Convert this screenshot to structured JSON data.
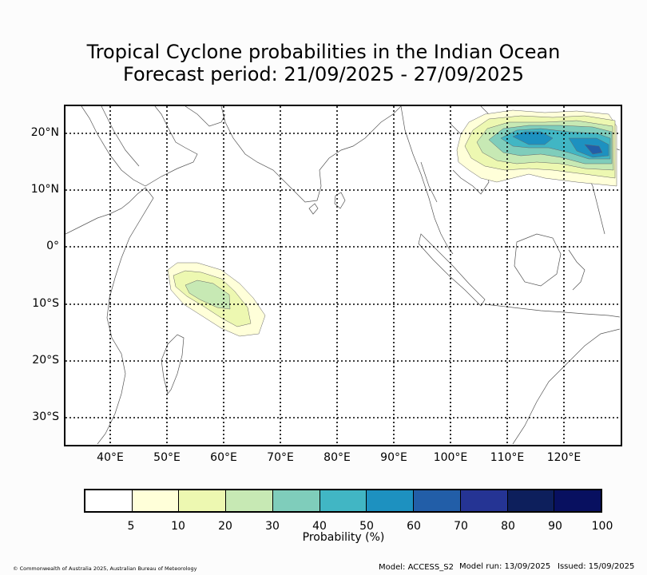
{
  "title": {
    "line1": "Tropical Cyclone probabilities in the Indian Ocean",
    "line2": "Forecast period: 21/09/2025 - 27/09/2025"
  },
  "map": {
    "lat_labels": [
      "20°N",
      "10°N",
      "0°",
      "10°S",
      "20°S",
      "30°S"
    ],
    "lon_labels": [
      "40°E",
      "50°E",
      "60°E",
      "70°E",
      "80°E",
      "90°E",
      "100°E",
      "110°E",
      "120°E"
    ],
    "lat_range": [
      -35,
      25
    ],
    "lon_range": [
      32,
      130
    ]
  },
  "colorbar": {
    "title": "Probability (%)",
    "ticks": [
      "5",
      "10",
      "20",
      "30",
      "40",
      "50",
      "60",
      "70",
      "80",
      "90",
      "100"
    ],
    "colors": [
      "#ffffff",
      "#ffffd9",
      "#edf8b1",
      "#c7e9b4",
      "#7fcdbb",
      "#41b6c4",
      "#1d91c0",
      "#225ea8",
      "#253494",
      "#0d1f5c",
      "#081060"
    ]
  },
  "footer": {
    "copyright": "© Commonwealth of Australia 2025, Australian Bureau of Meteorology",
    "model": "Model: ACCESS_S2",
    "run": "Model run: 13/09/2025",
    "issued": "Issued: 15/09/2025"
  }
}
